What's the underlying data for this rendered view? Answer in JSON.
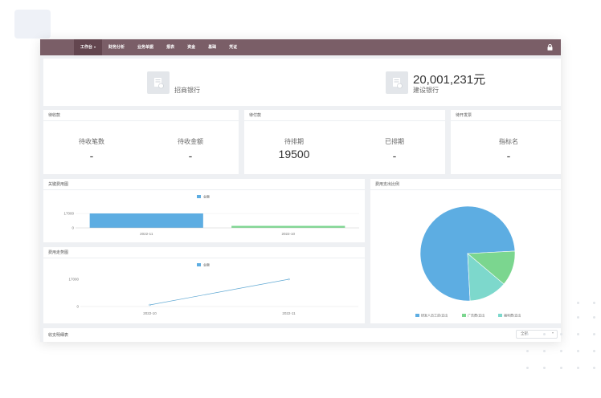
{
  "nav": {
    "items": [
      {
        "label": "工作台",
        "active": true,
        "caret": "▾"
      },
      {
        "label": "财务分析",
        "active": false
      },
      {
        "label": "业务单据",
        "active": false
      },
      {
        "label": "报表",
        "active": false
      },
      {
        "label": "资金",
        "active": false
      },
      {
        "label": "基础",
        "active": false
      },
      {
        "label": "凭证",
        "active": false
      }
    ],
    "lock_icon": "lock-icon"
  },
  "banks": [
    {
      "name": "招商银行",
      "amount": "",
      "icon": "bank-doc-icon"
    },
    {
      "name": "建设银行",
      "amount": "20,001,231元",
      "icon": "bank-doc-icon"
    }
  ],
  "receivable": {
    "title": "待收款",
    "stats": [
      {
        "label": "待收笔数",
        "value": "-"
      },
      {
        "label": "待收金额",
        "value": "-"
      }
    ]
  },
  "payable": {
    "title": "待付款",
    "stats": [
      {
        "label": "待排期",
        "value": "19500"
      },
      {
        "label": "已排期",
        "value": "-"
      }
    ]
  },
  "invoice": {
    "title": "待开发票",
    "stats": [
      {
        "label": "指标名",
        "value": "-"
      }
    ]
  },
  "colors": {
    "nav": "#7a5e67",
    "blue": "#5dade2",
    "green": "#7bd68f",
    "teal": "#7dd8cc",
    "line": "#5fa8d3"
  },
  "chart_data": [
    {
      "type": "bar",
      "title": "关键费用图",
      "legend": [
        "金额"
      ],
      "categories": [
        "2022-11",
        "2022-10"
      ],
      "series": [
        {
          "name": "金额",
          "values": [
            17000,
            0
          ]
        }
      ],
      "yticks": [
        "17000",
        "0"
      ],
      "ylim": [
        0,
        20000
      ]
    },
    {
      "type": "line",
      "title": "费用走势图",
      "legend": [
        "金额"
      ],
      "categories": [
        "2022-10",
        "2022-11"
      ],
      "series": [
        {
          "name": "金额",
          "values": [
            0,
            17000
          ]
        }
      ],
      "yticks": [
        "17000",
        "0"
      ],
      "ylim": [
        0,
        20000
      ]
    },
    {
      "type": "pie",
      "title": "费用支出比例",
      "slices": [
        {
          "name": "研发人员工资/支出",
          "value": 75
        },
        {
          "name": "广告费/支出",
          "value": 12
        },
        {
          "name": "福利费/支出",
          "value": 13
        }
      ]
    }
  ],
  "ledger": {
    "title": "收支明细表",
    "select_value": "全部",
    "select_caret": "▾"
  }
}
